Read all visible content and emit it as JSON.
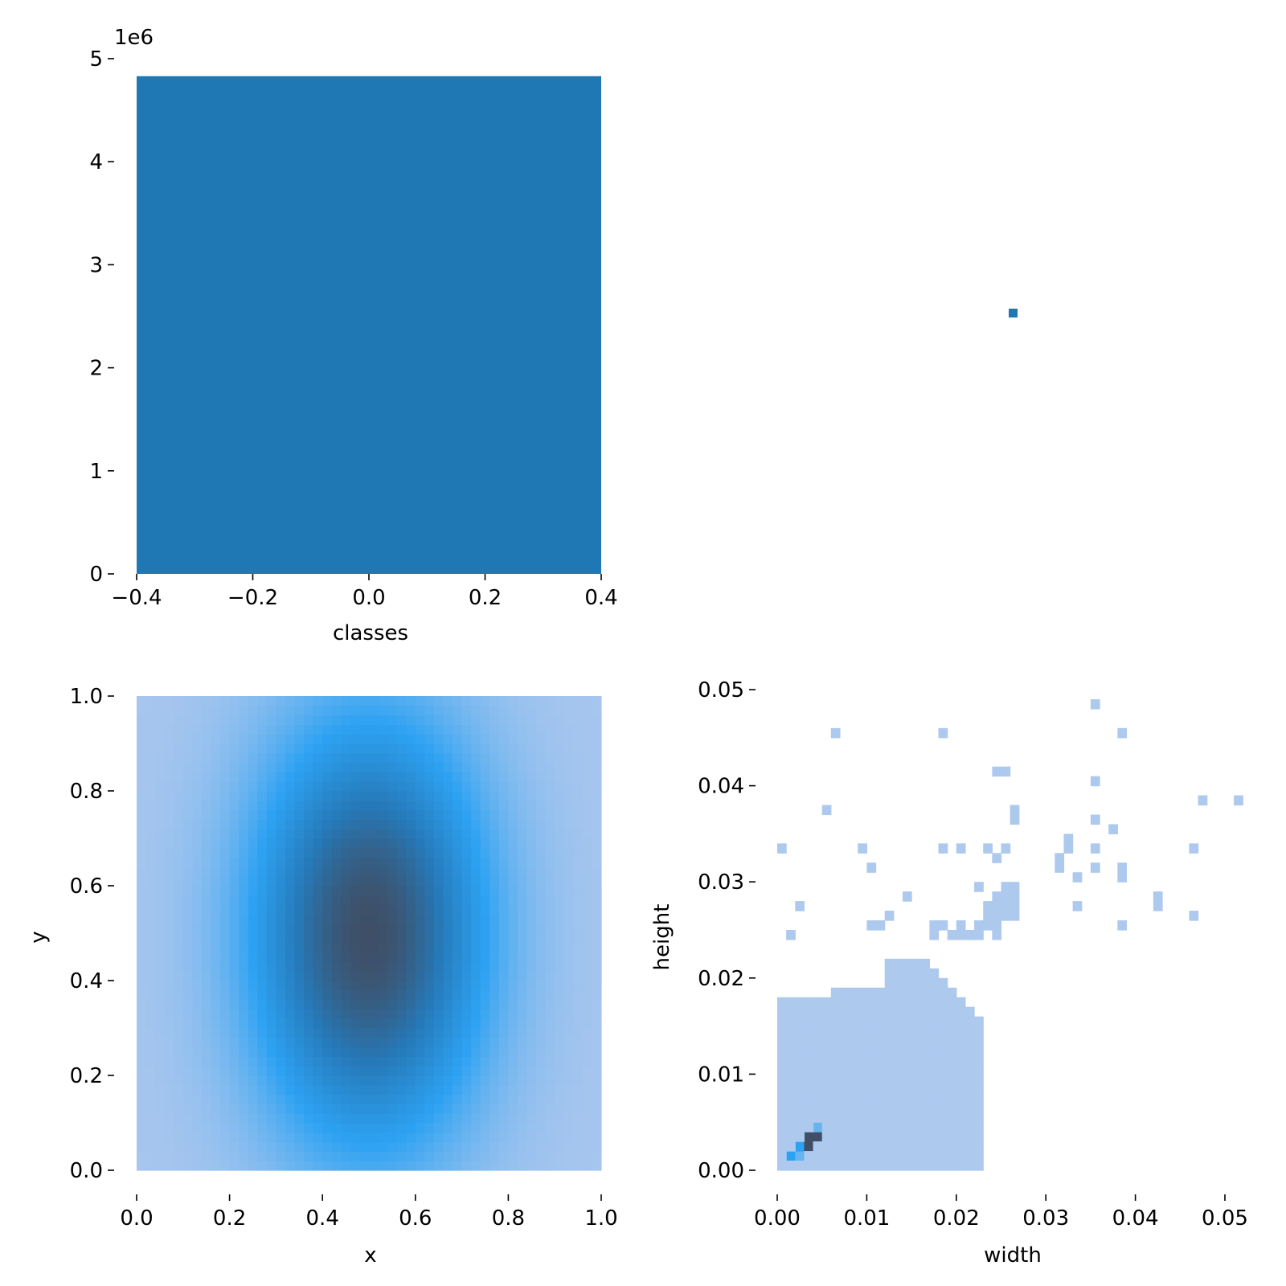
{
  "chart_data": [
    {
      "panel": "top-left",
      "type": "bar",
      "xlabel": "classes",
      "ylabel": "",
      "x_ticks": [
        -0.4,
        -0.2,
        0.0,
        0.2,
        0.4
      ],
      "x_tick_labels": [
        "−0.4",
        "−0.2",
        "0.0",
        "0.2",
        "0.4"
      ],
      "y_ticks": [
        0,
        1,
        2,
        3,
        4,
        5
      ],
      "y_tick_labels": [
        "0",
        "1",
        "2",
        "3",
        "4",
        "5"
      ],
      "y_offset_label": "1e6",
      "xlim": [
        -0.4,
        0.4
      ],
      "ylim": [
        0,
        5
      ],
      "bars": [
        {
          "category": "0",
          "x0": -0.4,
          "x1": 0.4,
          "value": 4.83
        }
      ],
      "color": "#1f77b4"
    },
    {
      "panel": "top-right",
      "type": "heatmap",
      "xlabel": "",
      "ylabel": "",
      "marker": {
        "x": 0.5,
        "y": 0.5,
        "color": "#1f77b4"
      }
    },
    {
      "panel": "bottom-left",
      "type": "heatmap",
      "xlabel": "x",
      "ylabel": "y",
      "x_ticks": [
        0.0,
        0.2,
        0.4,
        0.6,
        0.8,
        1.0
      ],
      "x_tick_labels": [
        "0.0",
        "0.2",
        "0.4",
        "0.6",
        "0.8",
        "1.0"
      ],
      "y_ticks": [
        0.0,
        0.2,
        0.4,
        0.6,
        0.8,
        1.0
      ],
      "y_tick_labels": [
        "0.0",
        "0.2",
        "0.4",
        "0.6",
        "0.8",
        "1.0"
      ],
      "xlim": [
        0,
        1
      ],
      "ylim": [
        0,
        1
      ],
      "bins": 50,
      "density": {
        "center_x": 0.5,
        "center_y": 0.5,
        "sigma_x": 0.17,
        "sigma_y": 0.3
      }
    },
    {
      "panel": "bottom-right",
      "type": "heatmap",
      "xlabel": "width",
      "ylabel": "height",
      "x_ticks": [
        0.0,
        0.01,
        0.02,
        0.03,
        0.04,
        0.05
      ],
      "x_tick_labels": [
        "0.00",
        "0.01",
        "0.02",
        "0.03",
        "0.04",
        "0.05"
      ],
      "y_ticks": [
        0.0,
        0.01,
        0.02,
        0.03,
        0.04,
        0.05
      ],
      "y_tick_labels": [
        "0.00",
        "0.01",
        "0.02",
        "0.03",
        "0.04",
        "0.05"
      ],
      "xlim": [
        0,
        0.052
      ],
      "ylim": [
        0,
        0.05
      ],
      "bin_size": 0.001,
      "cells": [
        [
          0.001,
          0.001,
          3
        ],
        [
          0.002,
          0.001,
          2
        ],
        [
          0.002,
          0.002,
          3
        ],
        [
          0.003,
          0.002,
          4
        ],
        [
          0.003,
          0.003,
          4
        ],
        [
          0.004,
          0.003,
          4
        ],
        [
          0.004,
          0.004,
          2
        ],
        [
          0.005,
          0.004,
          1
        ],
        [
          0.006,
          0.045,
          1
        ],
        [
          0.018,
          0.045,
          1
        ],
        [
          0.035,
          0.048,
          1
        ],
        [
          0.038,
          0.045,
          1
        ],
        [
          0.024,
          0.041,
          1
        ],
        [
          0.025,
          0.041,
          1
        ],
        [
          0.035,
          0.04,
          1
        ],
        [
          0.047,
          0.038,
          1
        ],
        [
          0.051,
          0.038,
          1
        ],
        [
          0.005,
          0.037,
          1
        ],
        [
          0.026,
          0.037,
          1
        ],
        [
          0.026,
          0.036,
          1
        ],
        [
          0.035,
          0.036,
          1
        ],
        [
          0.037,
          0.035,
          1
        ],
        [
          0.0,
          0.033,
          1
        ],
        [
          0.009,
          0.033,
          1
        ],
        [
          0.018,
          0.033,
          1
        ],
        [
          0.02,
          0.033,
          1
        ],
        [
          0.023,
          0.033,
          1
        ],
        [
          0.025,
          0.033,
          1
        ],
        [
          0.032,
          0.034,
          1
        ],
        [
          0.032,
          0.033,
          1
        ],
        [
          0.035,
          0.033,
          1
        ],
        [
          0.046,
          0.033,
          1
        ],
        [
          0.01,
          0.031,
          1
        ],
        [
          0.024,
          0.032,
          1
        ],
        [
          0.031,
          0.032,
          1
        ],
        [
          0.031,
          0.031,
          1
        ],
        [
          0.035,
          0.031,
          1
        ],
        [
          0.038,
          0.031,
          1
        ],
        [
          0.033,
          0.03,
          1
        ],
        [
          0.038,
          0.03,
          1
        ],
        [
          0.022,
          0.029,
          1
        ],
        [
          0.025,
          0.029,
          1
        ],
        [
          0.026,
          0.029,
          1
        ],
        [
          0.014,
          0.028,
          1
        ],
        [
          0.024,
          0.028,
          1
        ],
        [
          0.025,
          0.028,
          1
        ],
        [
          0.026,
          0.028,
          1
        ],
        [
          0.042,
          0.028,
          1
        ],
        [
          0.002,
          0.027,
          1
        ],
        [
          0.023,
          0.027,
          1
        ],
        [
          0.024,
          0.027,
          1
        ],
        [
          0.025,
          0.027,
          1
        ],
        [
          0.026,
          0.027,
          1
        ],
        [
          0.033,
          0.027,
          1
        ],
        [
          0.042,
          0.027,
          1
        ],
        [
          0.012,
          0.026,
          1
        ],
        [
          0.023,
          0.026,
          1
        ],
        [
          0.024,
          0.026,
          1
        ],
        [
          0.025,
          0.026,
          1
        ],
        [
          0.026,
          0.026,
          1
        ],
        [
          0.046,
          0.026,
          1
        ],
        [
          0.01,
          0.025,
          1
        ],
        [
          0.011,
          0.025,
          1
        ],
        [
          0.017,
          0.025,
          1
        ],
        [
          0.018,
          0.025,
          1
        ],
        [
          0.02,
          0.025,
          1
        ],
        [
          0.022,
          0.025,
          1
        ],
        [
          0.023,
          0.025,
          1
        ],
        [
          0.024,
          0.025,
          1
        ],
        [
          0.038,
          0.025,
          1
        ],
        [
          0.001,
          0.024,
          1
        ],
        [
          0.017,
          0.024,
          1
        ],
        [
          0.019,
          0.024,
          1
        ],
        [
          0.02,
          0.024,
          1
        ],
        [
          0.021,
          0.024,
          1
        ],
        [
          0.022,
          0.024,
          1
        ],
        [
          0.024,
          0.024,
          1
        ]
      ]
    }
  ]
}
